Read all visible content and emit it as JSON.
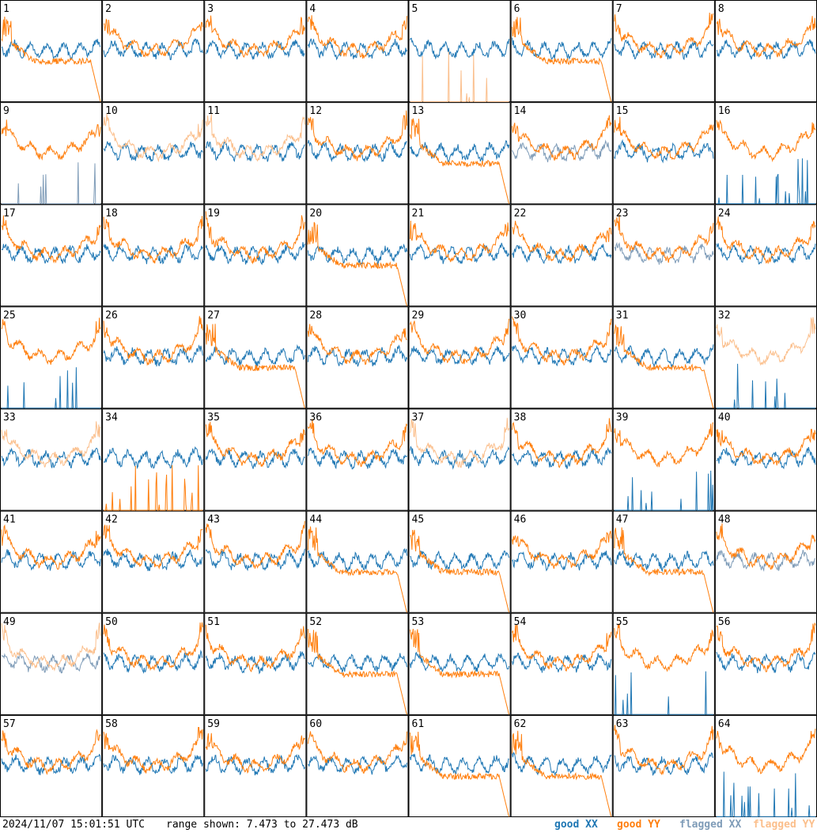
{
  "chart_data": {
    "type": "line",
    "title": "",
    "panels": [
      "1",
      "2",
      "3",
      "4",
      "5",
      "6",
      "7",
      "8",
      "9",
      "10",
      "11",
      "12",
      "13",
      "14",
      "15",
      "16",
      "17",
      "18",
      "19",
      "20",
      "21",
      "22",
      "23",
      "24",
      "25",
      "26",
      "27",
      "28",
      "29",
      "30",
      "31",
      "32",
      "33",
      "34",
      "35",
      "36",
      "37",
      "38",
      "39",
      "40",
      "41",
      "42",
      "43",
      "44",
      "45",
      "46",
      "47",
      "48",
      "49",
      "50",
      "51",
      "52",
      "53",
      "54",
      "55",
      "56",
      "57",
      "58",
      "59",
      "60",
      "61",
      "62",
      "63",
      "64"
    ],
    "series": [
      {
        "name": "good XX",
        "color": "#1f77b4"
      },
      {
        "name": "good YY",
        "color": "#ff7f0e"
      },
      {
        "name": "flagged XX",
        "color": "#7f9cb8"
      },
      {
        "name": "flagged YY",
        "color": "#fbbf8c"
      }
    ],
    "ylim": [
      7.473,
      27.473
    ],
    "grid": false,
    "legend_position": "bottom-right"
  },
  "footer": {
    "timestamp": "2024/11/07 15:01:51 UTC",
    "range_text": "range shown: 7.473 to 27.473 dB"
  },
  "legend": {
    "good_xx": "good XX",
    "good_yy": "good YY",
    "flagged_xx": "flagged XX",
    "flagged_yy": "flagged YY"
  }
}
